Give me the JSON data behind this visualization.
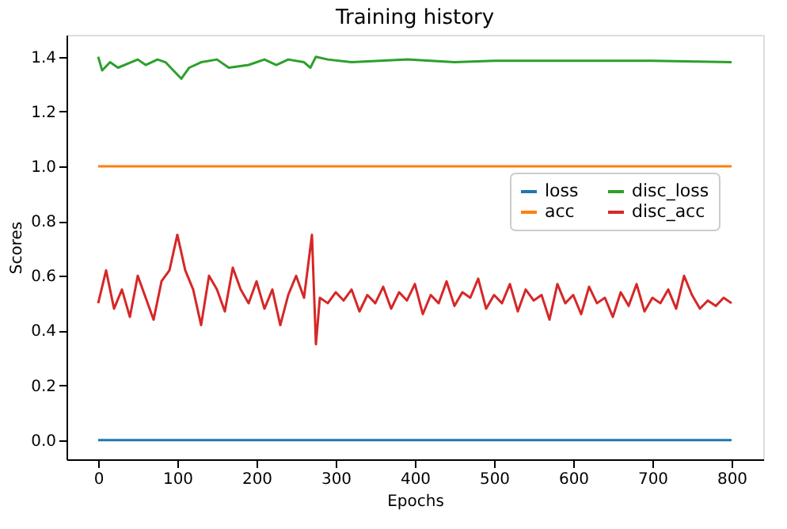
{
  "chart_data": {
    "type": "line",
    "title": "Training history",
    "xlabel": "Epochs",
    "ylabel": "Scores",
    "xlim": [
      -40,
      840
    ],
    "xticks": [
      0,
      100,
      200,
      300,
      400,
      500,
      600,
      700,
      800
    ],
    "ylim": [
      -0.07,
      1.48
    ],
    "yticks": [
      {
        "value": 0,
        "label": "0.0"
      },
      {
        "value": 0.2,
        "label": "0.2"
      },
      {
        "value": 0.4,
        "label": "0.4"
      },
      {
        "value": 0.6,
        "label": "0.6"
      },
      {
        "value": 0.8,
        "label": "0.8"
      },
      {
        "value": 1.0,
        "label": "1.0"
      },
      {
        "value": 1.2,
        "label": "1.2"
      },
      {
        "value": 1.4,
        "label": "1.4"
      }
    ],
    "grid": false,
    "legend": "center right",
    "line_style": "solid",
    "series": [
      {
        "name": "loss",
        "color": "#1f77b4",
        "x": [
          0,
          800
        ],
        "values": [
          0,
          0
        ]
      },
      {
        "name": "acc",
        "color": "#ff7f0e",
        "x": [
          0,
          800
        ],
        "values": [
          1.0,
          1.0
        ]
      },
      {
        "name": "disc_loss",
        "color": "#2ca02c",
        "x": [
          0,
          5,
          15,
          25,
          50,
          60,
          75,
          85,
          95,
          105,
          115,
          130,
          150,
          165,
          190,
          210,
          225,
          240,
          260,
          268,
          275,
          290,
          320,
          390,
          450,
          500,
          600,
          700,
          800
        ],
        "values": [
          1.4,
          1.35,
          1.38,
          1.36,
          1.39,
          1.37,
          1.39,
          1.38,
          1.35,
          1.32,
          1.36,
          1.38,
          1.39,
          1.36,
          1.37,
          1.39,
          1.37,
          1.39,
          1.38,
          1.36,
          1.4,
          1.39,
          1.38,
          1.39,
          1.38,
          1.385,
          1.385,
          1.385,
          1.38
        ]
      },
      {
        "name": "disc_acc",
        "color": "#d62728",
        "x": [
          0,
          10,
          20,
          30,
          40,
          50,
          60,
          70,
          80,
          90,
          100,
          110,
          120,
          130,
          140,
          150,
          160,
          170,
          180,
          190,
          200,
          210,
          220,
          230,
          240,
          250,
          260,
          270,
          275,
          280,
          290,
          300,
          310,
          320,
          330,
          340,
          350,
          360,
          370,
          380,
          390,
          400,
          410,
          420,
          430,
          440,
          450,
          460,
          470,
          480,
          490,
          500,
          510,
          520,
          530,
          540,
          550,
          560,
          570,
          580,
          590,
          600,
          610,
          620,
          630,
          640,
          650,
          660,
          670,
          680,
          690,
          700,
          710,
          720,
          730,
          740,
          750,
          760,
          770,
          780,
          790,
          800
        ],
        "values": [
          0.5,
          0.62,
          0.48,
          0.55,
          0.45,
          0.6,
          0.52,
          0.44,
          0.58,
          0.62,
          0.75,
          0.62,
          0.55,
          0.42,
          0.6,
          0.55,
          0.47,
          0.63,
          0.55,
          0.5,
          0.58,
          0.48,
          0.55,
          0.42,
          0.53,
          0.6,
          0.52,
          0.75,
          0.35,
          0.52,
          0.5,
          0.54,
          0.51,
          0.55,
          0.47,
          0.53,
          0.5,
          0.56,
          0.48,
          0.54,
          0.51,
          0.57,
          0.46,
          0.53,
          0.5,
          0.58,
          0.49,
          0.54,
          0.52,
          0.59,
          0.48,
          0.53,
          0.5,
          0.57,
          0.47,
          0.55,
          0.51,
          0.53,
          0.44,
          0.57,
          0.5,
          0.53,
          0.46,
          0.56,
          0.5,
          0.52,
          0.45,
          0.54,
          0.49,
          0.57,
          0.47,
          0.52,
          0.5,
          0.55,
          0.48,
          0.6,
          0.53,
          0.48,
          0.51,
          0.49,
          0.52,
          0.5
        ]
      }
    ]
  }
}
